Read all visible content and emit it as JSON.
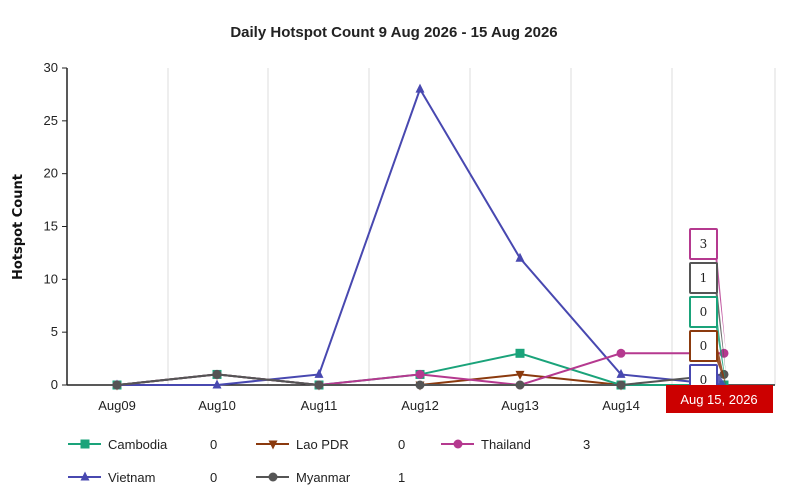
{
  "chart_data": {
    "type": "line",
    "title": "Daily Hotspot Count 9 Aug 2026 - 15 Aug 2026",
    "xlabel": "",
    "ylabel": "Hotspot Count",
    "ylim": [
      0,
      30
    ],
    "yticks": [
      0,
      5,
      10,
      15,
      20,
      25,
      30
    ],
    "categories": [
      "Aug09",
      "Aug10",
      "Aug11",
      "Aug12",
      "Aug13",
      "Aug14",
      "Aug15"
    ],
    "hover_label": "Aug 15, 2026",
    "series": [
      {
        "name": "Cambodia",
        "color": "#1aa37a",
        "marker": "square",
        "values": [
          0,
          1,
          0,
          1,
          3,
          0,
          0
        ],
        "legend_value": "0"
      },
      {
        "name": "Lao PDR",
        "color": "#8b3a0e",
        "marker": "triangle-down",
        "values": [
          0,
          1,
          0,
          0,
          1,
          0,
          0
        ],
        "legend_value": "0"
      },
      {
        "name": "Thailand",
        "color": "#b5398f",
        "marker": "circle",
        "values": [
          0,
          1,
          0,
          1,
          0,
          3,
          3
        ],
        "legend_value": "3"
      },
      {
        "name": "Vietnam",
        "color": "#4848b0",
        "marker": "triangle-up",
        "values": [
          0,
          0,
          1,
          28,
          12,
          1,
          0
        ],
        "legend_value": "0"
      },
      {
        "name": "Myanmar",
        "color": "#555555",
        "marker": "circle",
        "values": [
          0,
          1,
          0,
          0,
          0,
          0,
          1
        ],
        "legend_value": "1"
      }
    ],
    "tooltips": [
      {
        "series": "Thailand",
        "value": "3"
      },
      {
        "series": "Myanmar",
        "value": "1"
      },
      {
        "series": "Cambodia",
        "value": "0"
      },
      {
        "series": "Lao PDR",
        "value": "0"
      },
      {
        "series": "Vietnam",
        "value": "0"
      }
    ],
    "grid": true,
    "legend_position": "bottom"
  }
}
